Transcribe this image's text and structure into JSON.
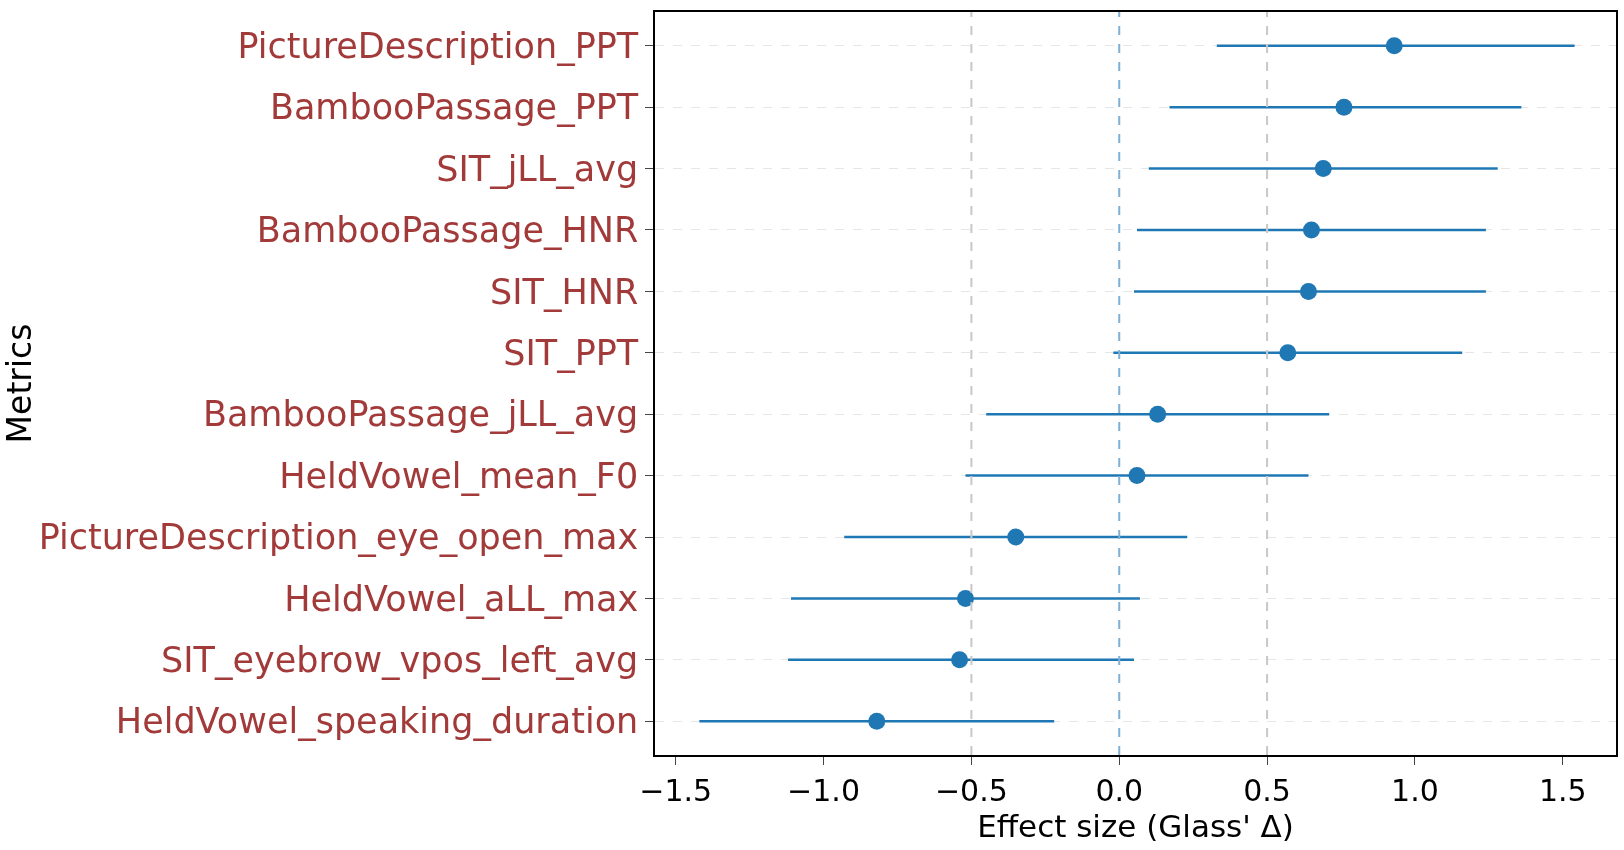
{
  "chart_data": {
    "type": "scatter",
    "xlabel": "Effect size (Glass' Δ)",
    "ylabel": "Metrics",
    "categories": [
      "PictureDescription_PPT",
      "BambooPassage_PPT",
      "SIT_jLL_avg",
      "BambooPassage_HNR",
      "SIT_HNR",
      "SIT_PPT",
      "BambooPassage_jLL_avg",
      "HeldVowel_mean_F0",
      "PictureDescription_eye_open_max",
      "HeldVowel_aLL_max",
      "SIT_eyebrow_vpos_left_avg",
      "HeldVowel_speaking_duration"
    ],
    "orientation": "horizontal",
    "series": [
      {
        "color": "#1f77b4",
        "values": [
          0.93,
          0.76,
          0.69,
          0.65,
          0.64,
          0.57,
          0.13,
          0.06,
          -0.35,
          -0.52,
          -0.54,
          -0.82
        ],
        "errors": [
          [
            0.33,
            1.54
          ],
          [
            0.17,
            1.36
          ],
          [
            0.1,
            1.28
          ],
          [
            0.06,
            1.24
          ],
          [
            0.05,
            1.24
          ],
          [
            -0.02,
            1.16
          ],
          [
            -0.45,
            0.71
          ],
          [
            -0.52,
            0.64
          ],
          [
            -0.93,
            0.23
          ],
          [
            -1.11,
            0.07
          ],
          [
            -1.12,
            0.05
          ],
          [
            -1.42,
            -0.22
          ]
        ]
      }
    ],
    "xlim": [
      -1.57,
      1.68
    ],
    "xticks": [
      {
        "value": -1.5,
        "label": "−1.5"
      },
      {
        "value": -1.0,
        "label": "−1.0"
      },
      {
        "value": -0.5,
        "label": "−0.5"
      },
      {
        "value": 0,
        "label": "0.0"
      },
      {
        "value": 0.5,
        "label": "0.5"
      },
      {
        "value": 1.0,
        "label": "1.0"
      },
      {
        "value": 1.5,
        "label": "1.5"
      }
    ],
    "ref_lines": [
      {
        "axis": "x",
        "value": -0.5,
        "color": "#c8c8c8",
        "line_style": "dashed"
      },
      {
        "axis": "x",
        "value": 0.5,
        "color": "#c8c8c8",
        "line_style": "dashed"
      },
      {
        "axis": "x",
        "value": 0,
        "color": "#7fb0d6",
        "line_style": "dashed"
      }
    ],
    "grid": "y",
    "marker": "circle"
  }
}
